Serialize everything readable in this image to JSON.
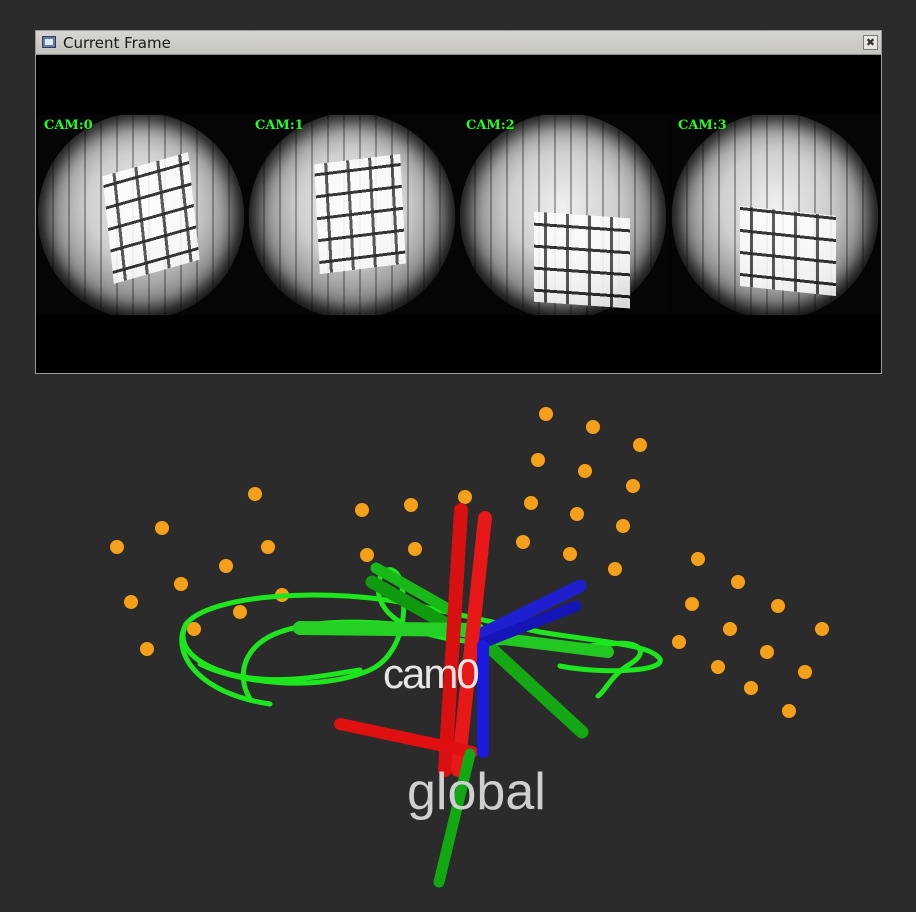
{
  "window": {
    "title": "Current Frame",
    "close_glyph": "✖"
  },
  "cameras": [
    {
      "label": "CAM:0"
    },
    {
      "label": "CAM:1"
    },
    {
      "label": "CAM:2"
    },
    {
      "label": "CAM:3"
    }
  ],
  "scene": {
    "frame_label": "cam0",
    "global_label": "global",
    "landmark_color": "#f5a01a",
    "trajectory_color": "#1ee61e",
    "axis_colors": {
      "x": "#e01010",
      "y": "#14b814",
      "z": "#1818e0"
    }
  }
}
